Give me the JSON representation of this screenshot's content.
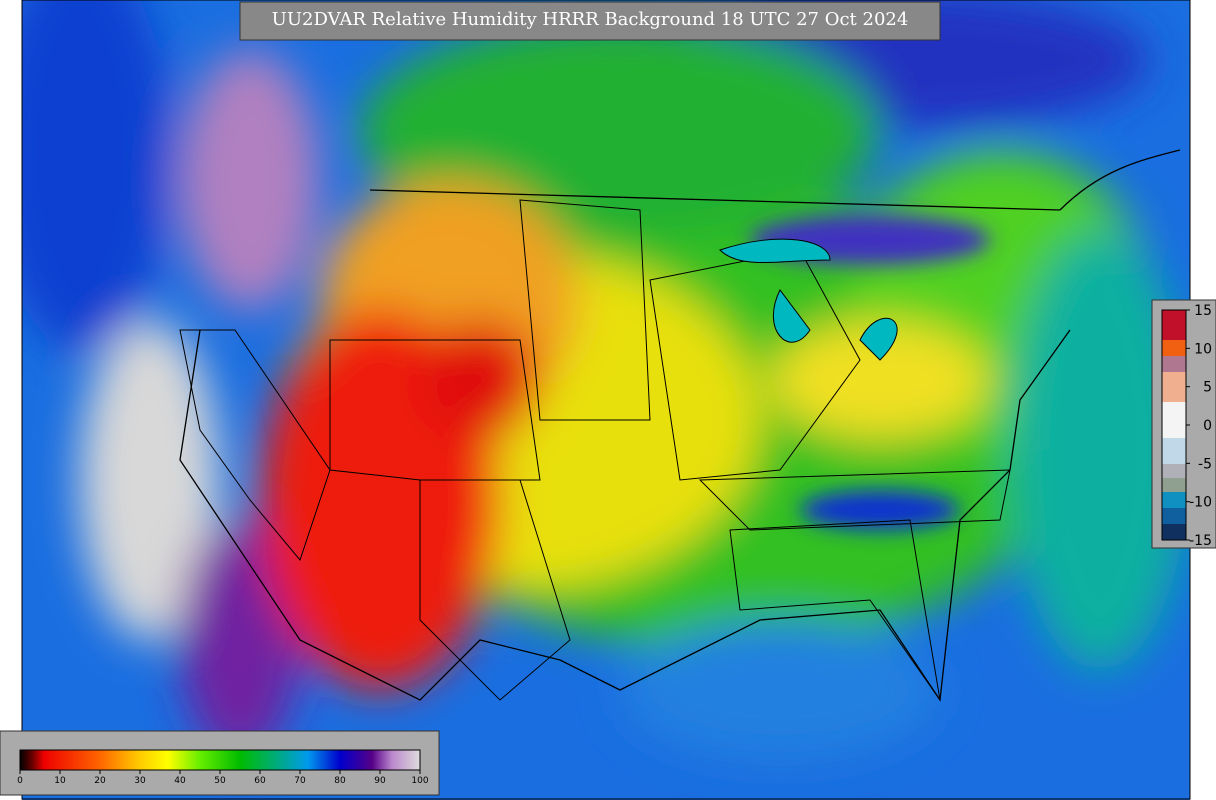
{
  "title": "UU2DVAR Relative Humidity HRRR Background  18 UTC 27 Oct 2024",
  "colorbar": {
    "ticks": [
      0,
      10,
      20,
      30,
      40,
      50,
      60,
      70,
      80,
      90,
      100
    ]
  },
  "increment_bar": {
    "ticks": [
      15,
      10,
      5,
      0,
      -5,
      -10,
      -15
    ]
  }
}
